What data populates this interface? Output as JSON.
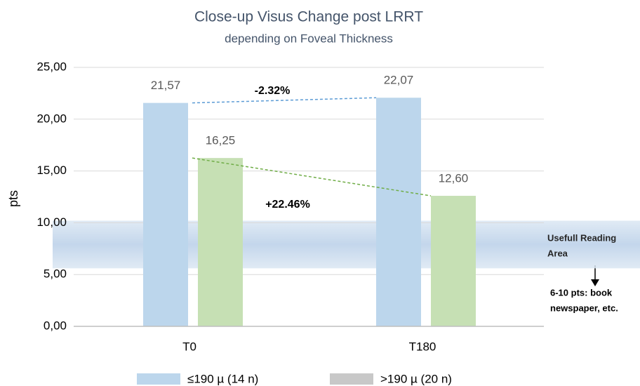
{
  "chart_data": {
    "type": "bar",
    "title": "Close-up Visus Change post LRRT",
    "subtitle": "depending on Foveal Thickness",
    "y_label": "pts",
    "categories": [
      "T0",
      "T180"
    ],
    "series": [
      {
        "name": "≤190 µ (14 n)",
        "color": "#bcd6ec",
        "legend_color": "#bcd6ec",
        "trend_color": "#5b9bd5",
        "values": [
          21.57,
          22.07
        ],
        "value_labels": [
          "21,57",
          "22,07"
        ]
      },
      {
        "name": ">190 µ (20 n)",
        "color": "#c6e0b4",
        "legend_color": "#c8c8c8",
        "trend_color": "#70ad47",
        "values": [
          16.25,
          12.6
        ],
        "value_labels": [
          "16,25",
          "12,60"
        ]
      }
    ],
    "ylim": [
      0,
      25
    ],
    "yticks": [
      {
        "value": 0,
        "label": "0,00"
      },
      {
        "value": 5,
        "label": "5,00"
      },
      {
        "value": 10,
        "label": "10,00"
      },
      {
        "value": 15,
        "label": "15,00"
      },
      {
        "value": 20,
        "label": "20,00"
      },
      {
        "value": 25,
        "label": "25,00"
      }
    ],
    "grid": true,
    "band": [
      5.6,
      10.2
    ],
    "annotations": {
      "change_1": "-2.32%",
      "change_2": "+22.46%",
      "band_label": [
        "Usefull Reading",
        "Area"
      ],
      "band_note": [
        "6-10 pts: book",
        "newspaper, etc."
      ]
    }
  }
}
